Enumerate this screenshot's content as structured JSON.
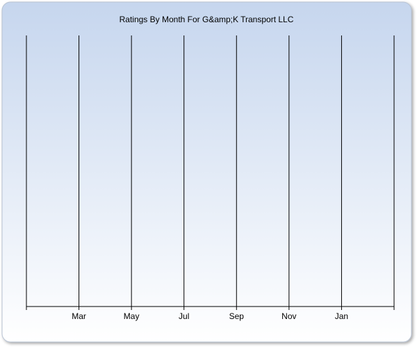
{
  "chart_data": {
    "type": "line",
    "title": "Ratings By Month For G&amp;K Transport LLC",
    "categories": [
      null,
      "Mar",
      "May",
      "Jul",
      "Sep",
      "Nov",
      "Jan",
      null
    ],
    "grid": true
  }
}
